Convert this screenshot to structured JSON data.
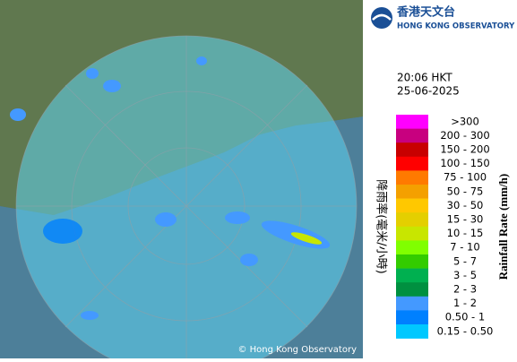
{
  "header": {
    "org_zh": "香港天文台",
    "org_en": "HONG KONG OBSERVATORY"
  },
  "time": "20:06 HKT",
  "date": "25-06-2025",
  "legend": {
    "title_en": "Rainfall Rate (mm/h)",
    "title_zh": "降雨率(毫米/小時)",
    "items": [
      {
        "label": ">300",
        "color": "#ff00ff"
      },
      {
        "label": "200 - 300",
        "color": "#c8007f"
      },
      {
        "label": "150 - 200",
        "color": "#c80000"
      },
      {
        "label": "100 - 150",
        "color": "#ff0000"
      },
      {
        "label": "75 - 100",
        "color": "#ff7a00"
      },
      {
        "label": "50 - 75",
        "color": "#f4a000"
      },
      {
        "label": "30 - 50",
        "color": "#ffc800"
      },
      {
        "label": "15 - 30",
        "color": "#e4cf00"
      },
      {
        "label": "10 - 15",
        "color": "#c8e600"
      },
      {
        "label": "7 - 10",
        "color": "#80ff00"
      },
      {
        "label": "5 - 7",
        "color": "#33cc00"
      },
      {
        "label": "3 - 5",
        "color": "#00b050"
      },
      {
        "label": "2 - 3",
        "color": "#009040"
      },
      {
        "label": "1 - 2",
        "color": "#4499ff"
      },
      {
        "label": "0.50 - 1",
        "color": "#0080ff"
      },
      {
        "label": "0.15 - 0.50",
        "color": "#00c8ff"
      }
    ]
  },
  "copyright": "© Hong Kong Observatory"
}
